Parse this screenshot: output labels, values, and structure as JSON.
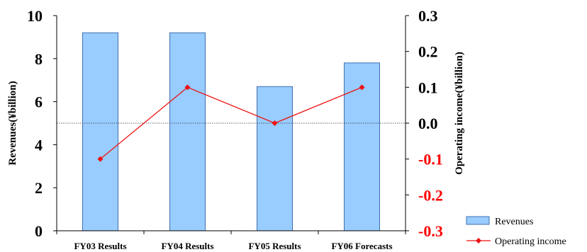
{
  "colors": {
    "bar_fill": "#99ccff",
    "bar_stroke": "#3f6fb0",
    "line": "#ee1111",
    "right_axis_positive": "#000000",
    "right_axis_negative": "#ff0000"
  },
  "chart_data": {
    "type": "bar",
    "categories": [
      "FY03 Results",
      "FY04 Results",
      "FY05 Results",
      "FY06 Forecasts"
    ],
    "series": [
      {
        "name": "Revenues",
        "type": "bar",
        "axis": "left",
        "values": [
          9.2,
          9.2,
          6.7,
          7.8
        ]
      },
      {
        "name": "Operating income",
        "type": "line",
        "axis": "right",
        "values": [
          -0.1,
          0.1,
          0.0,
          0.1
        ]
      }
    ],
    "ylabel": "Revenues(¥billion)",
    "ylabel_right": "Operating income(¥billion)",
    "ylim": [
      0,
      10
    ],
    "ylim_right": [
      -0.3,
      0.3
    ],
    "yticks": [
      "0",
      "2",
      "4",
      "6",
      "8",
      "10"
    ],
    "yticks_right": [
      "0.3",
      "0.2",
      "0.1",
      "0.0",
      "-0.1",
      "-0.2",
      "-0.3"
    ],
    "grid": false,
    "reference_line": "dotted line at operating income 0.0",
    "legend": {
      "position": "bottom-right",
      "entries": [
        "Revenues",
        "Operating income"
      ]
    }
  }
}
